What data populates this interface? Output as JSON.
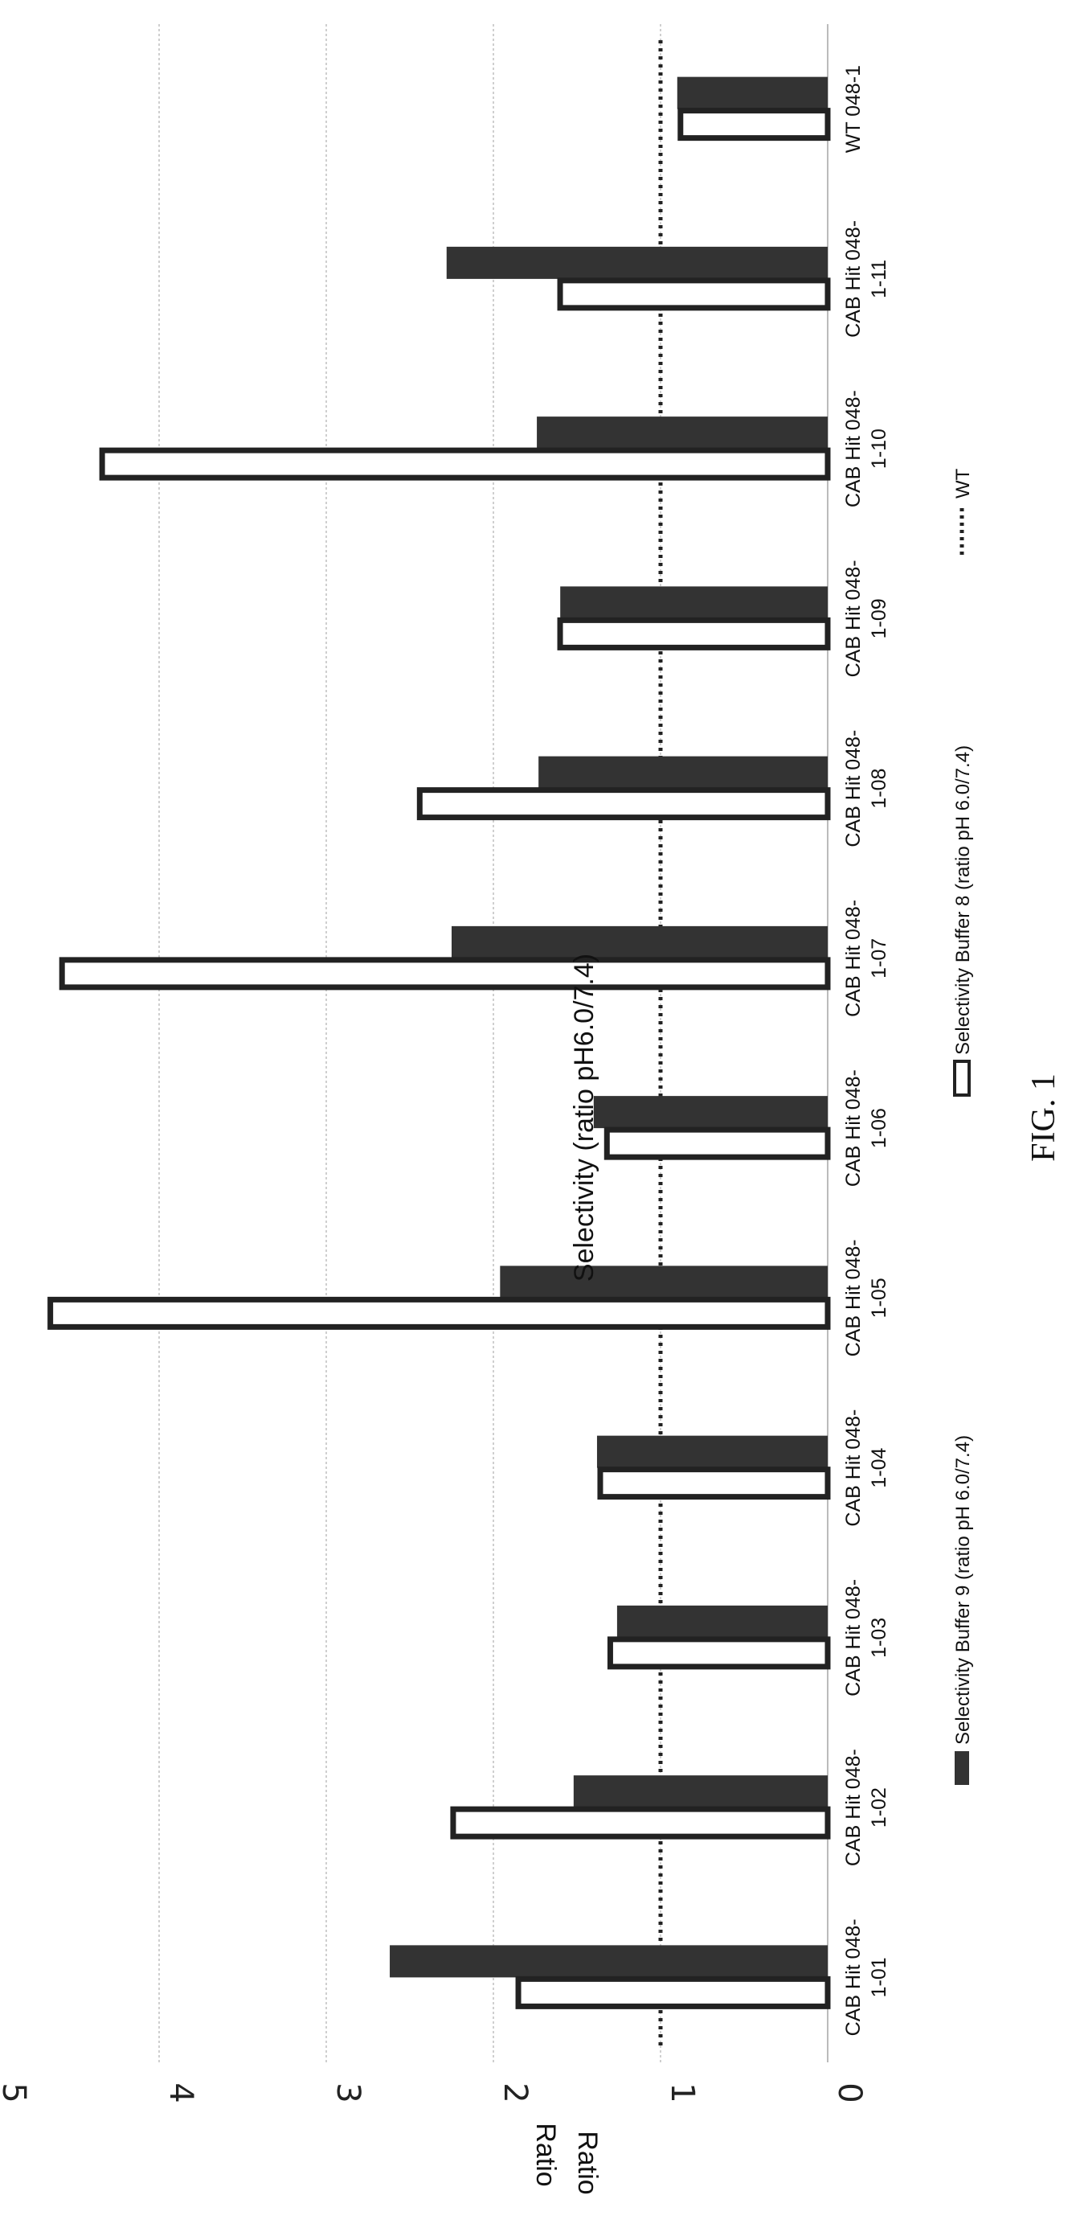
{
  "chart_data": {
    "type": "bar",
    "title": "Selectivity (ratio pH6.0/7.4)",
    "ylabel": "Ratio",
    "ylabel_duplicate": "Ratio",
    "ylim": [
      0,
      5
    ],
    "yticks": [
      0,
      1,
      2,
      3,
      4,
      5
    ],
    "grid": true,
    "categories": [
      [
        "CAB Hit 048-",
        "1-01"
      ],
      [
        "CAB Hit 048-",
        "1-02"
      ],
      [
        "CAB Hit 048-",
        "1-03"
      ],
      [
        "CAB Hit 048-",
        "1-04"
      ],
      [
        "CAB Hit 048-",
        "1-05"
      ],
      [
        "CAB Hit 048-",
        "1-06"
      ],
      [
        "CAB Hit 048-",
        "1-07"
      ],
      [
        "CAB Hit 048-",
        "1-08"
      ],
      [
        "CAB Hit 048-",
        "1-09"
      ],
      [
        "CAB Hit 048-",
        "1-10"
      ],
      [
        "CAB Hit 048-",
        "1-11"
      ],
      [
        "WT 048-1",
        ""
      ]
    ],
    "series": [
      {
        "name": "Selectivity Buffer 9 (ratio pH 6.0/7.4)",
        "style": "filled",
        "color": "#333333",
        "values": [
          2.62,
          1.52,
          1.26,
          1.38,
          1.96,
          1.4,
          2.25,
          1.73,
          1.6,
          1.74,
          2.28,
          0.9
        ]
      },
      {
        "name": "Selectivity Buffer 8 (ratio pH 6.0/7.4)",
        "style": "outlined",
        "color": "#222222",
        "values": [
          1.87,
          2.26,
          1.32,
          1.38,
          4.67,
          1.34,
          4.6,
          2.46,
          1.62,
          4.36,
          1.62,
          0.9
        ]
      }
    ],
    "reference_line": {
      "name": "WT",
      "value": 1.0,
      "style": "dotted"
    },
    "legend_position": "bottom",
    "caption": "FIG. 1"
  }
}
